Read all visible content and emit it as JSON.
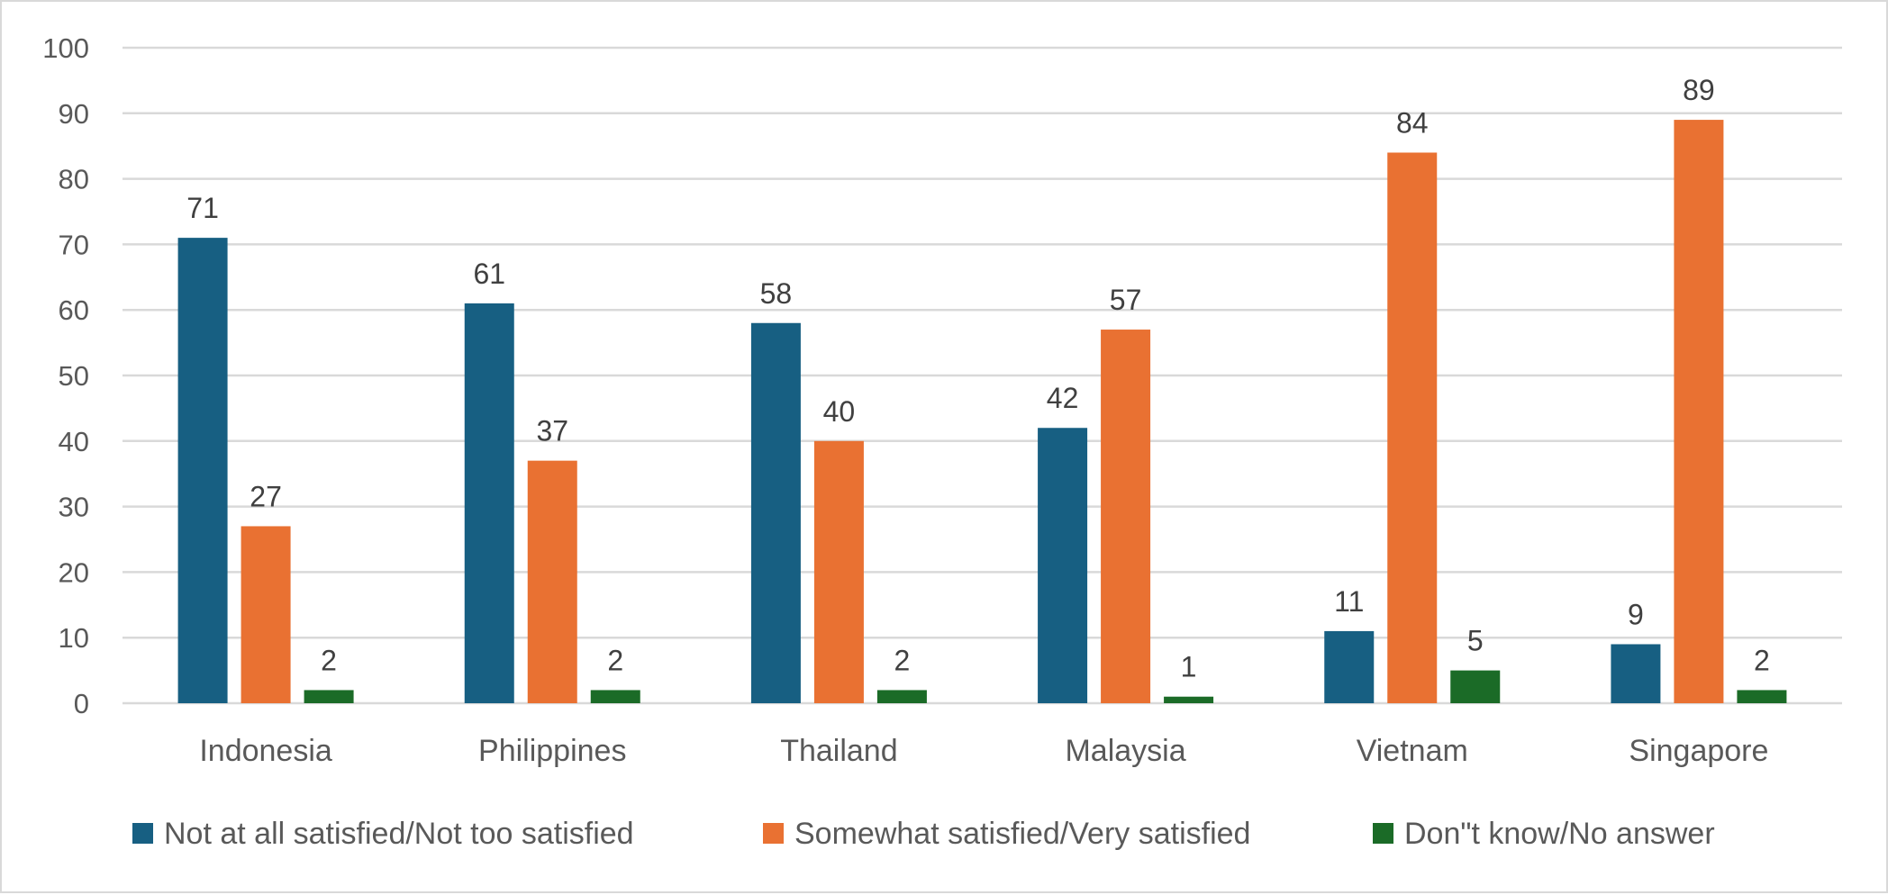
{
  "chart_data": {
    "type": "bar",
    "title": "",
    "xlabel": "",
    "ylabel": "",
    "ylim": [
      0,
      100
    ],
    "yticks": [
      0,
      10,
      20,
      30,
      40,
      50,
      60,
      70,
      80,
      90,
      100
    ],
    "grid": true,
    "legend_position": "bottom",
    "categories": [
      "Indonesia",
      "Philippines",
      "Thailand",
      "Malaysia",
      "Vietnam",
      "Singapore"
    ],
    "series": [
      {
        "name": "Not at all satisfied/Not too satisfied",
        "color": "#175f82",
        "values": [
          71,
          61,
          58,
          42,
          11,
          9
        ]
      },
      {
        "name": "Somewhat satisfied/Very satisfied",
        "color": "#e97132",
        "values": [
          27,
          37,
          40,
          57,
          84,
          89
        ]
      },
      {
        "name": "Don\"t know/No answer",
        "color": "#1b6b27",
        "values": [
          2,
          2,
          2,
          1,
          5,
          2
        ]
      }
    ]
  }
}
